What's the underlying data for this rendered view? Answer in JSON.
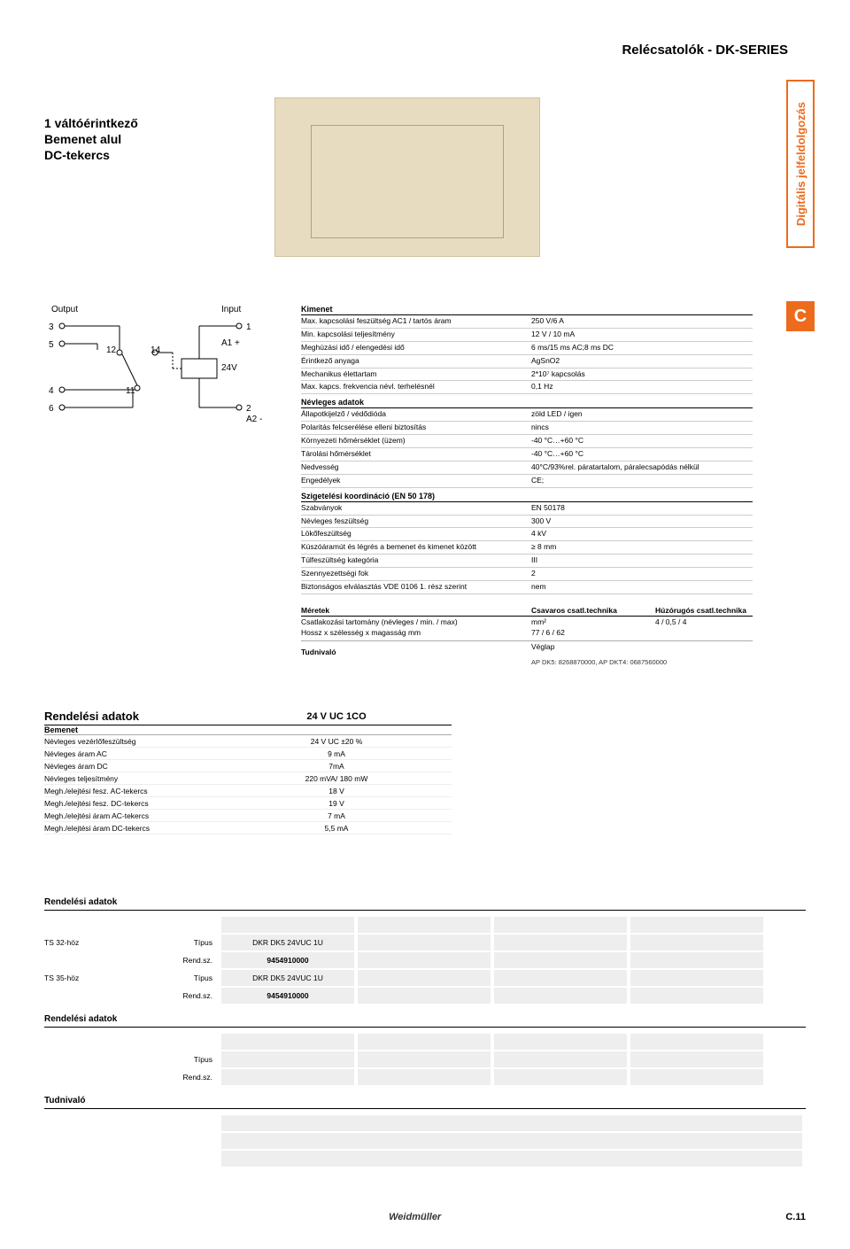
{
  "header": {
    "title": "Relécsatolók - DK-SERIES",
    "side_tab": "Digitális jelfeldolgozás"
  },
  "intro": {
    "line1": "1 váltóérintkező",
    "line2": "Bemenet alul",
    "line3": "DC-tekercs"
  },
  "schematic": {
    "output": "Output",
    "input": "Input",
    "n3": "3",
    "n1": "1",
    "n5": "5",
    "a1p": "A1 +",
    "n12": "12",
    "n14": "14",
    "v24": "24V",
    "n4": "4",
    "n11": "11",
    "n6": "6",
    "n2": "2",
    "a2m": "A2 -"
  },
  "c_badge": "C",
  "kimenet": {
    "title": "Kimenet",
    "rows": [
      {
        "k": "Max. kapcsolási feszültség AC1 / tartós áram",
        "v": "250 V/6 A"
      },
      {
        "k": "Min. kapcsolási teljesítmény",
        "v": "12 V / 10 mA"
      },
      {
        "k": "Meghúzási idő / elengedési idő",
        "v": "6 ms/15 ms AC;8 ms DC"
      },
      {
        "k": "Érintkező anyaga",
        "v": "AgSnO2"
      },
      {
        "k": "Mechanikus élettartam",
        "v": "2*10⁷ kapcsolás"
      },
      {
        "k": "Max. kapcs. frekvencia névl. terhelésnél",
        "v": "0,1 Hz"
      }
    ]
  },
  "nevleges": {
    "title": "Névleges adatok",
    "rows": [
      {
        "k": "Állapotkijelző / védődióda",
        "v": "zöld LED / igen"
      },
      {
        "k": "Polaritás felcserélése elleni biztosítás",
        "v": "nincs"
      },
      {
        "k": "Környezeti hőmérséklet (üzem)",
        "v": "-40 °C…+60 °C"
      },
      {
        "k": "Tárolási hőmérséklet",
        "v": "-40 °C…+60 °C"
      },
      {
        "k": "Nedvesség",
        "v": "40°C/93%rel. páratartalom, páralecsapódás nélkül"
      },
      {
        "k": "Engedélyek",
        "v": "CE;"
      }
    ]
  },
  "sziget": {
    "title": "Szigetelési koordináció (EN 50 178)",
    "rows": [
      {
        "k": "Szabványok",
        "v": "EN 50178"
      },
      {
        "k": "Névleges feszültség",
        "v": "300 V"
      },
      {
        "k": "Lökőfeszültség",
        "v": "4 kV"
      },
      {
        "k": "Kúszóáramút és légrés a bemenet és kimenet között",
        "v": "≥ 8 mm"
      },
      {
        "k": "Túlfeszültség kategória",
        "v": "III"
      },
      {
        "k": "Szennyezettségi fok",
        "v": "2"
      },
      {
        "k": "Biztonságos elválasztás VDE 0106 1. rész szerint",
        "v": "nem"
      }
    ]
  },
  "meretek": {
    "title": "Méretek",
    "h1": "Csavaros csatl.technika",
    "h2": "Húzórugós csatl.technika",
    "rows": [
      {
        "k": "Csatlakozási tartomány (névleges / min. / max)",
        "v1": "mm²",
        "v2": "4 / 0,5 / 4"
      },
      {
        "k": "Hossz x szélesség x magasság                    mm",
        "v1": "77 / 6 / 62",
        "v2": ""
      }
    ],
    "tudni": "Tudnivaló",
    "tudni_v1": "Véglap",
    "tudni_v2": "AP DK5: 8268870000,  AP DKT4: 0687560000"
  },
  "order": {
    "title": "Rendelési adatok",
    "column_head": "24 V UC 1CO",
    "sub": "Bemenet",
    "rows": [
      {
        "k": "Névleges vezérlőfeszültség",
        "v": "24 V UC ±20 %"
      },
      {
        "k": "Névleges áram AC",
        "v": "9 mA"
      },
      {
        "k": "Névleges áram DC",
        "v": "7mA"
      },
      {
        "k": "Névleges teljesítmény",
        "v": "220 mVA/ 180 mW"
      },
      {
        "k": "Megh./elejtési fesz. AC-tekercs",
        "v": "18 V"
      },
      {
        "k": "Megh./elejtési fesz. DC-tekercs",
        "v": "19 V"
      },
      {
        "k": "Megh./elejtési áram AC-tekercs",
        "v": "7 mA"
      },
      {
        "k": "Megh./elejtési áram DC-tekercs",
        "v": "5,5 mA"
      }
    ]
  },
  "order2": {
    "title": "Rendelési adatok",
    "groups": [
      {
        "label": "TS 32-höz",
        "tipus_label": "Típus",
        "tipus_val": "DKR DK5 24VUC 1U",
        "rend_label": "Rend.sz.",
        "rend_val": "9454910000"
      },
      {
        "label": "TS 35-höz",
        "tipus_label": "Típus",
        "tipus_val": "DKR DK5 24VUC 1U",
        "rend_label": "Rend.sz.",
        "rend_val": "9454910000"
      }
    ]
  },
  "order3": {
    "title": "Rendelési adatok",
    "tipus_label": "Típus",
    "rend_label": "Rend.sz."
  },
  "tudnivalo": "Tudnivaló",
  "footer": {
    "brand": "Weidmüller",
    "page": "C.11"
  },
  "colors": {
    "orange": "#ed6b1c",
    "beige": "#e8dcc0"
  }
}
